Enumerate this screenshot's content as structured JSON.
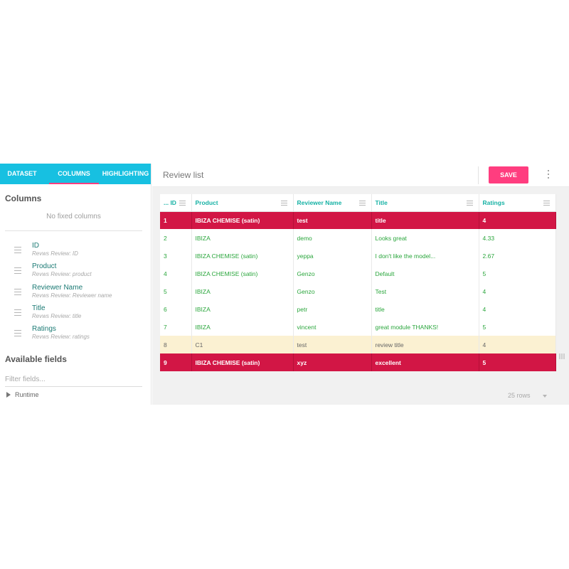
{
  "tabs": [
    {
      "label": "DATASET",
      "active": false
    },
    {
      "label": "COLUMNS",
      "active": true
    },
    {
      "label": "HIGHLIGHTING",
      "active": false
    }
  ],
  "left": {
    "columns_title": "Columns",
    "no_fixed": "No fixed columns",
    "columns": [
      {
        "name": "ID",
        "source": "Revws Review: ID"
      },
      {
        "name": "Product",
        "source": "Revws Review: product"
      },
      {
        "name": "Reviewer Name",
        "source": "Revws Review: Reviewer name"
      },
      {
        "name": "Title",
        "source": "Revws Review: title"
      },
      {
        "name": "Ratings",
        "source": "Revws Review: ratings"
      }
    ],
    "available_title": "Available fields",
    "filter_placeholder": "Filter fields...",
    "tree": [
      {
        "label": "Runtime"
      }
    ]
  },
  "header": {
    "title": "Review list",
    "save_label": "SAVE"
  },
  "table": {
    "headers": [
      "... ID",
      "Product",
      "Reviewer Name",
      "Title",
      "Ratings"
    ],
    "rows": [
      {
        "style": "red-bold",
        "cells": [
          "1",
          "IBIZA CHEMISE (satin)",
          "test",
          "title",
          "4"
        ]
      },
      {
        "style": "normal",
        "cells": [
          "2",
          "IBIZA",
          "demo",
          "Looks great",
          "4.33"
        ]
      },
      {
        "style": "normal",
        "cells": [
          "3",
          "IBIZA CHEMISE (satin)",
          "yeppa",
          "I don't like the model...",
          "2.67"
        ]
      },
      {
        "style": "normal",
        "cells": [
          "4",
          "IBIZA CHEMISE (satin)",
          "Genzo",
          "Default",
          "5"
        ]
      },
      {
        "style": "normal",
        "cells": [
          "5",
          "IBIZA",
          "Genzo",
          "Test",
          "4"
        ]
      },
      {
        "style": "normal",
        "cells": [
          "6",
          "IBIZA",
          "petr",
          "title",
          "4"
        ]
      },
      {
        "style": "normal",
        "cells": [
          "7",
          "IBIZA",
          "vincent",
          "great module THANKS!",
          "5"
        ]
      },
      {
        "style": "yellow",
        "cells": [
          "8",
          "C1",
          "test",
          "review title",
          "4"
        ]
      },
      {
        "style": "red-bold",
        "cells": [
          "9",
          "IBIZA CHEMISE (satin)",
          "xyz",
          "excellent",
          "5"
        ]
      }
    ],
    "row_count": "25 rows"
  },
  "colors": {
    "tab_bar": "#17c0e1",
    "accent": "#ff3d7f",
    "highlight_red": "#d21645",
    "highlight_yellow": "#fbf1d2",
    "header_text": "#17b2a5",
    "cell_text": "#2aa63c"
  }
}
